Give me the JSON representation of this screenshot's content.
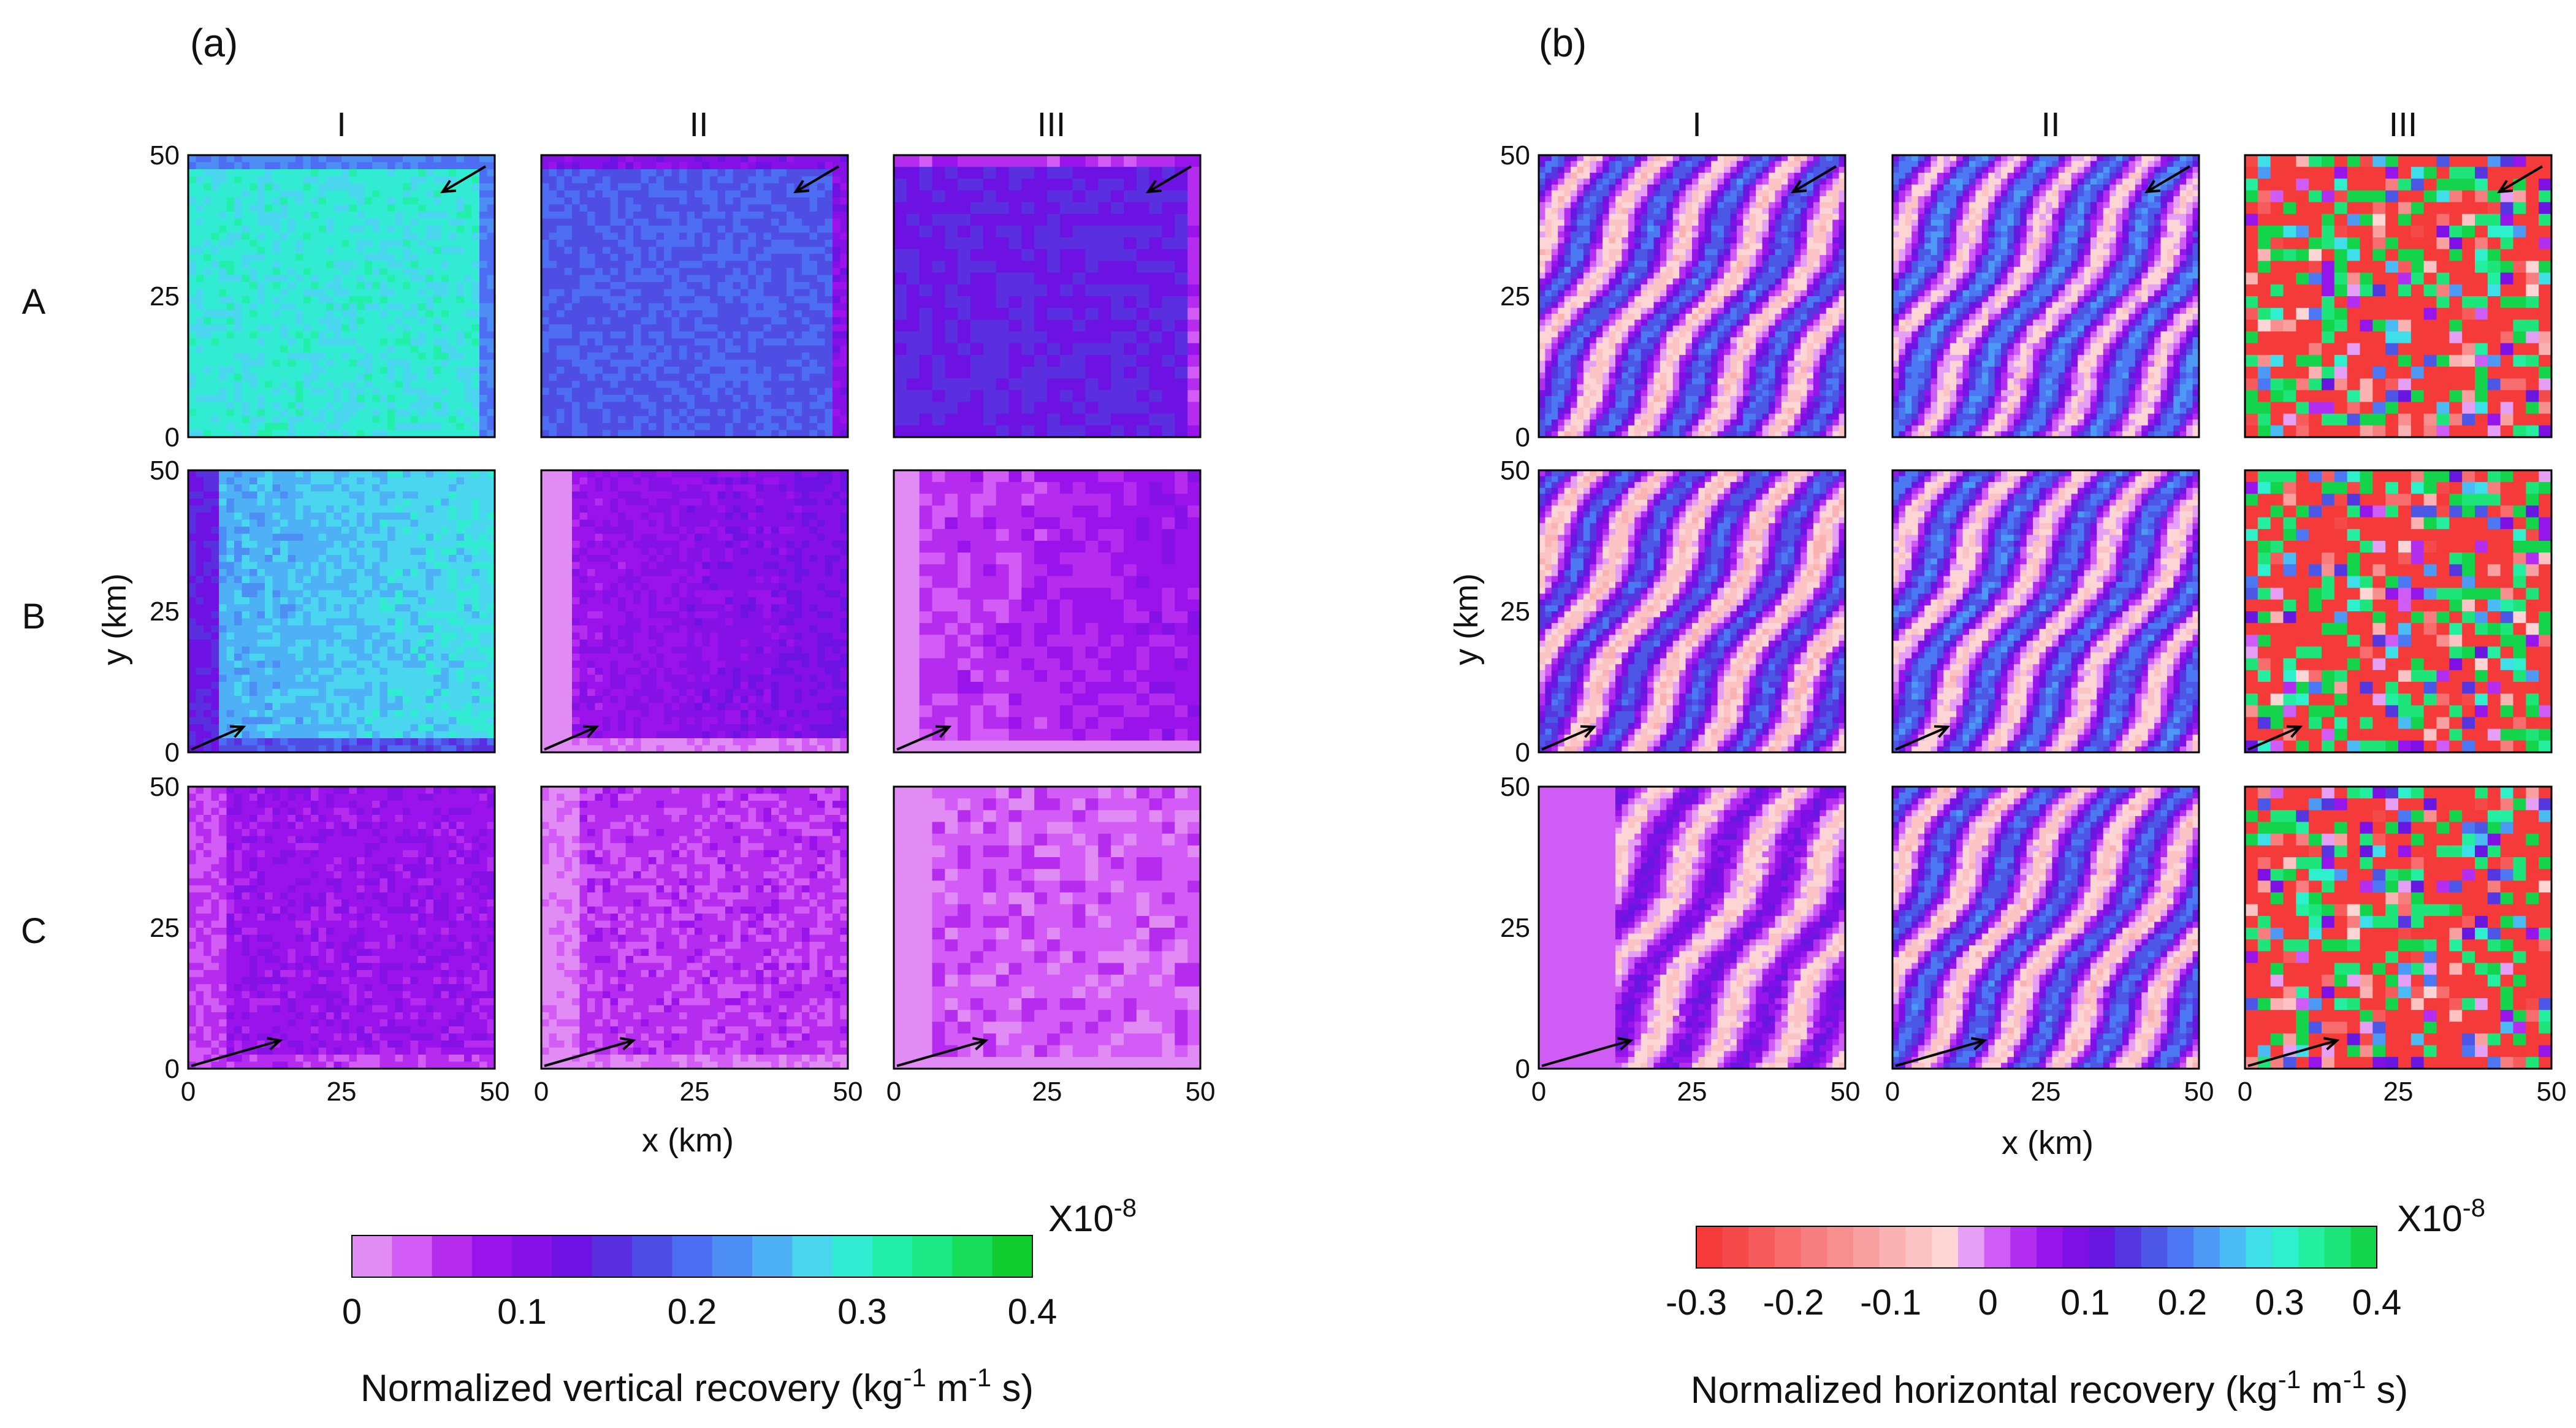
{
  "chart_data": {
    "type": "heatmap",
    "panels": [
      {
        "id": "a",
        "label": "(a)",
        "columns": [
          "I",
          "II",
          "III"
        ],
        "rows": [
          "A",
          "B",
          "C"
        ],
        "x_ticks": [
          "0",
          "25",
          "50"
        ],
        "y_ticks": [
          "0",
          "25",
          "50"
        ],
        "xlabel": "x (km)",
        "ylabel": "y (km)",
        "xlim": [
          0,
          50
        ],
        "ylim": [
          0,
          50
        ],
        "colorbar": {
          "label_main": "Normalized vertical recovery (kg",
          "label_exp1": "-1",
          "label_mid": " m",
          "label_exp2": "-1",
          "label_end": " s)",
          "scale_base": "X10",
          "scale_exp": "-8",
          "range": [
            0,
            0.4
          ],
          "tick_labels": [
            "0",
            "0.1",
            "0.2",
            "0.3",
            "0.4"
          ],
          "colors": [
            "#e18bf5",
            "#d25cf5",
            "#b62cef",
            "#9a13eb",
            "#8511e6",
            "#6d12e2",
            "#5a2fe0",
            "#4e4ee5",
            "#4d6ef2",
            "#4d8ef5",
            "#4eb0f5",
            "#4ad6ef",
            "#31ecd2",
            "#22efaa",
            "#1be884",
            "#18dd5a",
            "#10cc2e"
          ]
        },
        "grid_values": [
          [
            0.29,
            0.185,
            0.14
          ],
          [
            0.26,
            0.1,
            0.065
          ],
          [
            0.085,
            0.055,
            0.035
          ]
        ],
        "wind_arrows": [
          "down-left",
          "up-right",
          "up-right"
        ]
      },
      {
        "id": "b",
        "label": "(b)",
        "columns": [
          "I",
          "II",
          "III"
        ],
        "rows": [
          "A",
          "B",
          "C"
        ],
        "x_ticks": [
          "0",
          "25",
          "50"
        ],
        "y_ticks": [
          "0",
          "25",
          "50"
        ],
        "xlabel": "x (km)",
        "ylabel": "y (km)",
        "xlim": [
          0,
          50
        ],
        "ylim": [
          0,
          50
        ],
        "colorbar": {
          "label_main": "Normalized horizontal recovery (kg",
          "label_exp1": "-1",
          "label_mid": " m",
          "label_exp2": "-1",
          "label_end": " s)",
          "scale_base": "X10",
          "scale_exp": "-8",
          "range": [
            -0.3,
            0.4
          ],
          "tick_labels": [
            "-0.3",
            "-0.2",
            "-0.1",
            "0",
            "0.1",
            "0.2",
            "0.3",
            "0.4"
          ],
          "colors": [
            "#f53a3a",
            "#f54a4a",
            "#f65c5c",
            "#f76d6d",
            "#f77e7e",
            "#f88f8f",
            "#f9a0a0",
            "#fab2b2",
            "#fbc3c3",
            "#fdd5d5",
            "#e5a0f5",
            "#cf5cf5",
            "#b32ef0",
            "#9615ea",
            "#7e10e5",
            "#6717e0",
            "#5537df",
            "#4d57e6",
            "#4d78f3",
            "#4d9af5",
            "#4abcf3",
            "#3fdfea",
            "#2ef0cc",
            "#24ee9f",
            "#1de57a",
            "#14d44b"
          ]
        },
        "grid_values": [
          [
            0.06,
            0.08,
            0.0
          ],
          [
            0.05,
            0.07,
            0.0
          ],
          [
            0.02,
            0.06,
            -0.1
          ]
        ],
        "wind_arrows": [
          "down-left",
          "up-right",
          "up-right"
        ]
      }
    ]
  }
}
